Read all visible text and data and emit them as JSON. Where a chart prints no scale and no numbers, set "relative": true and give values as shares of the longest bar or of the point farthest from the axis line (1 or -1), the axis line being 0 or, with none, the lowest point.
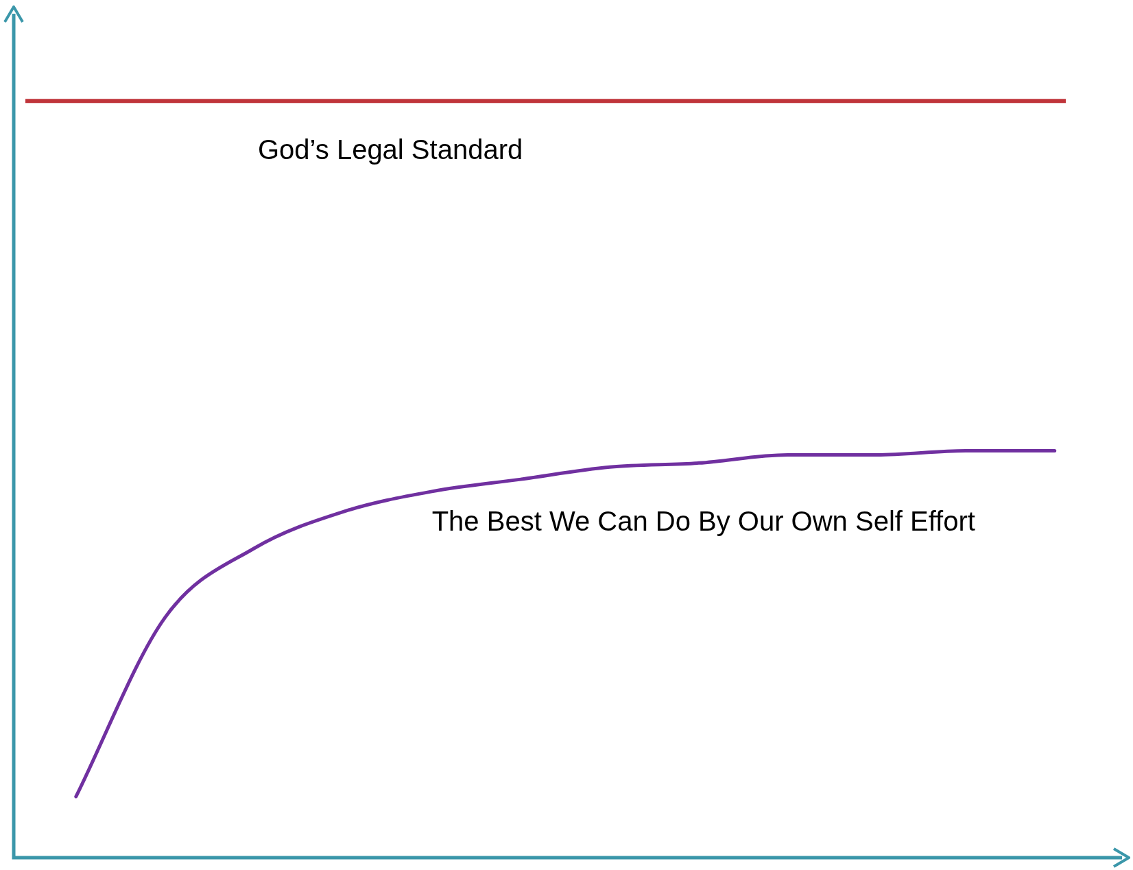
{
  "chart_data": {
    "type": "line",
    "relative": true,
    "categories": [
      null,
      null,
      null,
      null,
      null,
      null,
      null,
      null,
      null,
      null,
      null,
      null
    ],
    "series": [
      {
        "name": "The Best We Can Do By Our Own Self Effort",
        "color": "#7030a0",
        "values": [
          0.15,
          0.59,
          0.76,
          0.85,
          0.9,
          0.93,
          0.96,
          0.97,
          0.99,
          0.99,
          1.0,
          1.0
        ]
      }
    ],
    "ref_lines": [
      {
        "axis": "y",
        "value": 1.86,
        "label": "God’s Legal Standard",
        "color": "#c0343a"
      }
    ],
    "legend": false,
    "marker": "none",
    "line_style": "solid"
  }
}
